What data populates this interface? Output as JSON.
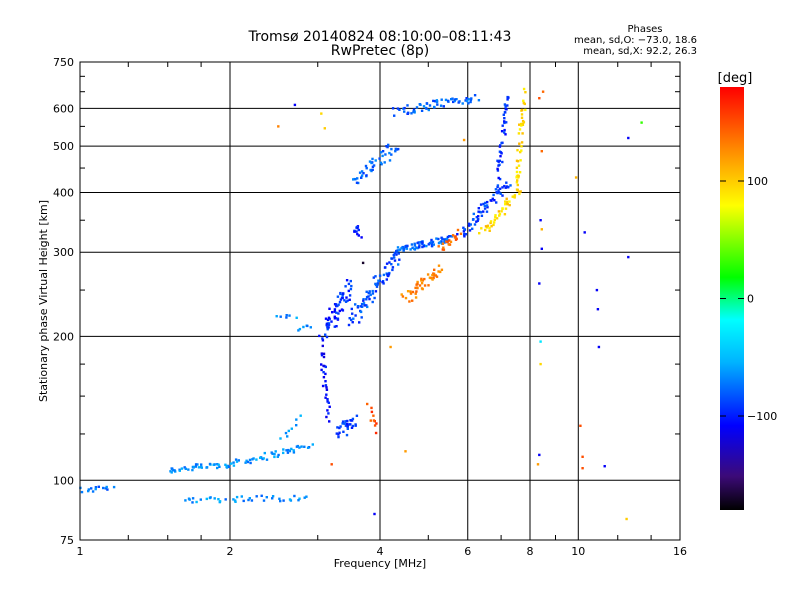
{
  "chart_data": {
    "type": "scatter",
    "title": "Tromsø 20140824 08:10:00–08:11:43",
    "subtitle": "RwPretec (8p)",
    "xlabel": "Frequency [MHz]",
    "ylabel": "Stationary phase Virtual Height [km]",
    "x_scale": "log",
    "y_scale": "log",
    "xlim": [
      1,
      16
    ],
    "ylim": [
      75,
      750
    ],
    "x_ticks": [
      "1",
      "2",
      "4",
      "6",
      "8",
      "10",
      "16"
    ],
    "x_tick_values": [
      1,
      2,
      4,
      6,
      8,
      10,
      16
    ],
    "y_ticks": [
      "75",
      "100",
      "200",
      "300",
      "400",
      "500",
      "600",
      "750"
    ],
    "y_tick_values": [
      75,
      100,
      200,
      300,
      400,
      500,
      600,
      750
    ],
    "grid": true,
    "phase_stats": {
      "title": "Phases",
      "line1": "mean, sd,O: −73.0, 18.6",
      "line2": "mean, sd,X:  92.2, 26.3"
    },
    "colorbar": {
      "label": "[deg]",
      "range": [
        -180,
        180
      ],
      "tick_labels": [
        "100",
        "0",
        "−100"
      ],
      "tick_values": [
        100,
        0,
        -100
      ]
    },
    "segments": [
      {
        "f0": 1.0,
        "f1": 1.15,
        "h0": 95,
        "h1": 97,
        "n": 14,
        "sf": 0.03,
        "sh": 0.015,
        "phase": -75
      },
      {
        "f0": 1.5,
        "f1": 2.0,
        "h0": 105,
        "h1": 108,
        "n": 40,
        "sf": 0.02,
        "sh": 0.015,
        "phase": -65
      },
      {
        "f0": 2.0,
        "f1": 2.9,
        "h0": 108,
        "h1": 118,
        "n": 45,
        "sf": 0.02,
        "sh": 0.015,
        "phase": -65
      },
      {
        "f0": 1.6,
        "f1": 2.85,
        "h0": 91,
        "h1": 92,
        "n": 40,
        "sf": 0.02,
        "sh": 0.015,
        "phase": -65
      },
      {
        "f0": 2.55,
        "f1": 2.75,
        "h0": 122,
        "h1": 134,
        "n": 8,
        "sf": 0.01,
        "sh": 0.02,
        "phase": -65
      },
      {
        "f0": 2.5,
        "f1": 2.7,
        "h0": 220,
        "h1": 220,
        "n": 6,
        "sf": 0.01,
        "sh": 0.01,
        "phase": -65
      },
      {
        "f0": 2.75,
        "f1": 2.9,
        "h0": 207,
        "h1": 210,
        "n": 6,
        "sf": 0.01,
        "sh": 0.01,
        "phase": -65
      },
      {
        "f0": 3.05,
        "f1": 3.15,
        "h0": 195,
        "h1": 135,
        "n": 30,
        "sf": 0.01,
        "sh": 0.03,
        "phase": -105
      },
      {
        "f0": 3.3,
        "f1": 3.55,
        "h0": 125,
        "h1": 135,
        "n": 30,
        "sf": 0.02,
        "sh": 0.03,
        "phase": -95
      },
      {
        "f0": 3.8,
        "f1": 3.95,
        "h0": 142,
        "h1": 128,
        "n": 10,
        "sf": 0.01,
        "sh": 0.02,
        "phase": 150
      },
      {
        "f0": 3.1,
        "f1": 3.5,
        "h0": 205,
        "h1": 255,
        "n": 60,
        "sf": 0.02,
        "sh": 0.05,
        "phase": -95
      },
      {
        "f0": 3.5,
        "f1": 4.4,
        "h0": 215,
        "h1": 300,
        "n": 80,
        "sf": 0.02,
        "sh": 0.04,
        "phase": -85
      },
      {
        "f0": 3.55,
        "f1": 3.65,
        "h0": 335,
        "h1": 325,
        "n": 12,
        "sf": 0.01,
        "sh": 0.03,
        "phase": -95
      },
      {
        "f0": 4.35,
        "f1": 5.6,
        "h0": 305,
        "h1": 320,
        "n": 70,
        "sf": 0.02,
        "sh": 0.015,
        "phase": -80
      },
      {
        "f0": 4.5,
        "f1": 5.3,
        "h0": 240,
        "h1": 275,
        "n": 45,
        "sf": 0.02,
        "sh": 0.03,
        "phase": 130
      },
      {
        "f0": 5.3,
        "f1": 5.8,
        "h0": 305,
        "h1": 330,
        "n": 20,
        "sf": 0.015,
        "sh": 0.015,
        "phase": 140
      },
      {
        "f0": 5.8,
        "f1": 7.2,
        "h0": 325,
        "h1": 420,
        "n": 60,
        "sf": 0.02,
        "sh": 0.02,
        "phase": -90
      },
      {
        "f0": 6.9,
        "f1": 7.2,
        "h0": 420,
        "h1": 640,
        "n": 40,
        "sf": 0.01,
        "sh": 0.04,
        "phase": -95
      },
      {
        "f0": 6.4,
        "f1": 7.6,
        "h0": 330,
        "h1": 400,
        "n": 40,
        "sf": 0.02,
        "sh": 0.02,
        "phase": 95
      },
      {
        "f0": 7.5,
        "f1": 7.8,
        "h0": 400,
        "h1": 640,
        "n": 45,
        "sf": 0.01,
        "sh": 0.04,
        "phase": 95
      },
      {
        "f0": 3.55,
        "f1": 4.3,
        "h0": 420,
        "h1": 500,
        "n": 45,
        "sf": 0.02,
        "sh": 0.03,
        "phase": -80
      },
      {
        "f0": 4.3,
        "f1": 6.2,
        "h0": 590,
        "h1": 630,
        "n": 60,
        "sf": 0.02,
        "sh": 0.02,
        "phase": -80
      }
    ],
    "scatter_points": [
      {
        "f": 2.5,
        "h": 550,
        "phase": 130
      },
      {
        "f": 2.7,
        "h": 610,
        "phase": -110
      },
      {
        "f": 3.05,
        "h": 585,
        "phase": 95
      },
      {
        "f": 3.1,
        "h": 545,
        "phase": 100
      },
      {
        "f": 3.7,
        "h": 285,
        "phase": -170
      },
      {
        "f": 3.9,
        "h": 85,
        "phase": -110
      },
      {
        "f": 4.2,
        "h": 190,
        "phase": 120
      },
      {
        "f": 4.5,
        "h": 115,
        "phase": 120
      },
      {
        "f": 3.2,
        "h": 108,
        "phase": 150
      },
      {
        "f": 5.9,
        "h": 515,
        "phase": 120
      },
      {
        "f": 8.3,
        "h": 108,
        "phase": 120
      },
      {
        "f": 8.35,
        "h": 113,
        "phase": -110
      },
      {
        "f": 8.4,
        "h": 195,
        "phase": -30
      },
      {
        "f": 8.35,
        "h": 258,
        "phase": -110
      },
      {
        "f": 8.4,
        "h": 350,
        "phase": -110
      },
      {
        "f": 8.45,
        "h": 335,
        "phase": 110
      },
      {
        "f": 8.45,
        "h": 305,
        "phase": -110
      },
      {
        "f": 8.4,
        "h": 175,
        "phase": 95
      },
      {
        "f": 8.45,
        "h": 488,
        "phase": 140
      },
      {
        "f": 8.5,
        "h": 650,
        "phase": 140
      },
      {
        "f": 8.35,
        "h": 630,
        "phase": 150
      },
      {
        "f": 9.9,
        "h": 430,
        "phase": 110
      },
      {
        "f": 10.1,
        "h": 130,
        "phase": 150
      },
      {
        "f": 10.2,
        "h": 112,
        "phase": 150
      },
      {
        "f": 10.2,
        "h": 106,
        "phase": 150
      },
      {
        "f": 10.3,
        "h": 330,
        "phase": -110
      },
      {
        "f": 10.9,
        "h": 250,
        "phase": -110
      },
      {
        "f": 10.95,
        "h": 228,
        "phase": -110
      },
      {
        "f": 11.0,
        "h": 190,
        "phase": -110
      },
      {
        "f": 11.3,
        "h": 107,
        "phase": -110
      },
      {
        "f": 12.6,
        "h": 293,
        "phase": -110
      },
      {
        "f": 12.6,
        "h": 520,
        "phase": -110
      },
      {
        "f": 13.4,
        "h": 560,
        "phase": 30
      },
      {
        "f": 12.5,
        "h": 83,
        "phase": 100
      }
    ]
  }
}
